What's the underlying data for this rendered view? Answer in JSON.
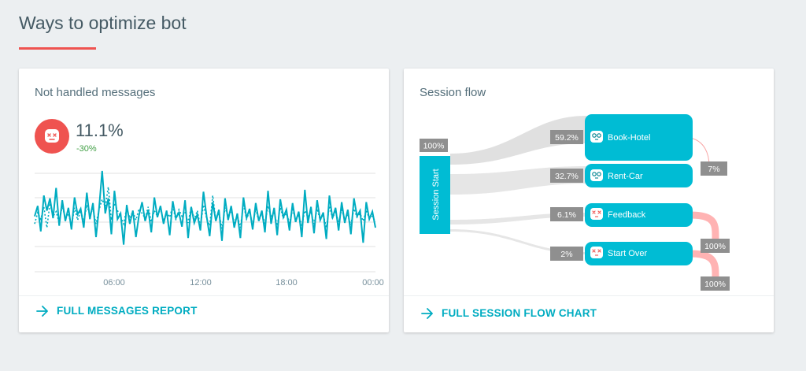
{
  "page": {
    "title": "Ways to optimize bot",
    "accent_color": "#ef5350"
  },
  "not_handled": {
    "title": "Not handled messages",
    "icon": "bot-dead-icon",
    "value": "11.1%",
    "delta": "-30%",
    "delta_color": "#43a047",
    "link_label": "FULL MESSAGES REPORT",
    "link_icon": "arrow-right-icon",
    "x_ticks": [
      "06:00",
      "12:00",
      "18:00",
      "00:00"
    ],
    "series_color": "#00acc1",
    "solid_series": [
      0.52,
      0.63,
      0.36,
      0.74,
      0.58,
      0.71,
      0.5,
      0.82,
      0.42,
      0.69,
      0.47,
      0.61,
      0.38,
      0.72,
      0.54,
      0.6,
      0.4,
      0.77,
      0.49,
      0.66,
      0.3,
      0.61,
      1.0,
      0.55,
      0.71,
      0.33,
      0.79,
      0.49,
      0.55,
      0.22,
      0.64,
      0.44,
      0.58,
      0.3,
      0.53,
      0.67,
      0.47,
      0.59,
      0.35,
      0.72,
      0.51,
      0.63,
      0.44,
      0.58,
      0.32,
      0.68,
      0.5,
      0.56,
      0.41,
      0.69,
      0.29,
      0.62,
      0.45,
      0.54,
      0.37,
      0.78,
      0.52,
      0.31,
      0.67,
      0.47,
      0.59,
      0.26,
      0.71,
      0.48,
      0.63,
      0.4,
      0.55,
      0.29,
      0.72,
      0.5,
      0.6,
      0.38,
      0.66,
      0.47,
      0.58,
      0.35,
      0.79,
      0.44,
      0.61,
      0.32,
      0.7,
      0.51,
      0.59,
      0.37,
      0.66,
      0.46,
      0.57,
      0.3,
      0.8,
      0.45,
      0.62,
      0.34,
      0.69,
      0.48,
      0.56,
      0.28,
      0.74,
      0.5,
      0.61,
      0.37,
      0.67,
      0.45,
      0.59,
      0.33,
      0.71,
      0.52,
      0.58,
      0.24,
      0.67,
      0.49,
      0.57,
      0.4
    ],
    "dotted_series": [
      0.44,
      0.56,
      0.49,
      0.62,
      0.4,
      0.66,
      0.52,
      0.57,
      0.45,
      0.63,
      0.5,
      0.55,
      0.42,
      0.61,
      0.48,
      0.58,
      0.46,
      0.64,
      0.53,
      0.6,
      0.44,
      0.59,
      0.7,
      0.62,
      0.83,
      0.48,
      0.66,
      0.58,
      0.52,
      0.44,
      0.61,
      0.5,
      0.57,
      0.48,
      0.6,
      0.55,
      0.5,
      0.62,
      0.46,
      0.58,
      0.52,
      0.6,
      0.47,
      0.56,
      0.51,
      0.63,
      0.48,
      0.59,
      0.52,
      0.57,
      0.45,
      0.62,
      0.49,
      0.58,
      0.41,
      0.64,
      0.5,
      0.42,
      0.74,
      0.48,
      0.56,
      0.39,
      0.61,
      0.52,
      0.58,
      0.45,
      0.53,
      0.4,
      0.65,
      0.49,
      0.57,
      0.43,
      0.6,
      0.47,
      0.56,
      0.44,
      0.63,
      0.51,
      0.57,
      0.42,
      0.61,
      0.5,
      0.55,
      0.45,
      0.59,
      0.49,
      0.53,
      0.42,
      0.58,
      0.51,
      0.57,
      0.44,
      0.6,
      0.48,
      0.54,
      0.4,
      0.63,
      0.5,
      0.57,
      0.46,
      0.59,
      0.49,
      0.53,
      0.43,
      0.6,
      0.51,
      0.55,
      0.47,
      0.58,
      0.5,
      0.52,
      0.46
    ]
  },
  "session_flow": {
    "title": "Session flow",
    "start_label": "Session Start",
    "start_pct": "100%",
    "link_label": "FULL SESSION FLOW CHART",
    "link_icon": "arrow-right-icon",
    "node_color": "#00bcd4",
    "exit_color": "#ffb3b3",
    "nodes": [
      {
        "label": "Book-Hotel",
        "pct": "59.2%",
        "icon": "bot-glasses-icon",
        "exit_pct": "7%"
      },
      {
        "label": "Rent-Car",
        "pct": "32.7%",
        "icon": "bot-glasses-icon"
      },
      {
        "label": "Feedback",
        "pct": "6.1%",
        "icon": "bot-dead-icon",
        "exit_pct": "100%"
      },
      {
        "label": "Start Over",
        "pct": "2%",
        "icon": "bot-dead-icon",
        "exit_pct": "100%"
      }
    ]
  }
}
